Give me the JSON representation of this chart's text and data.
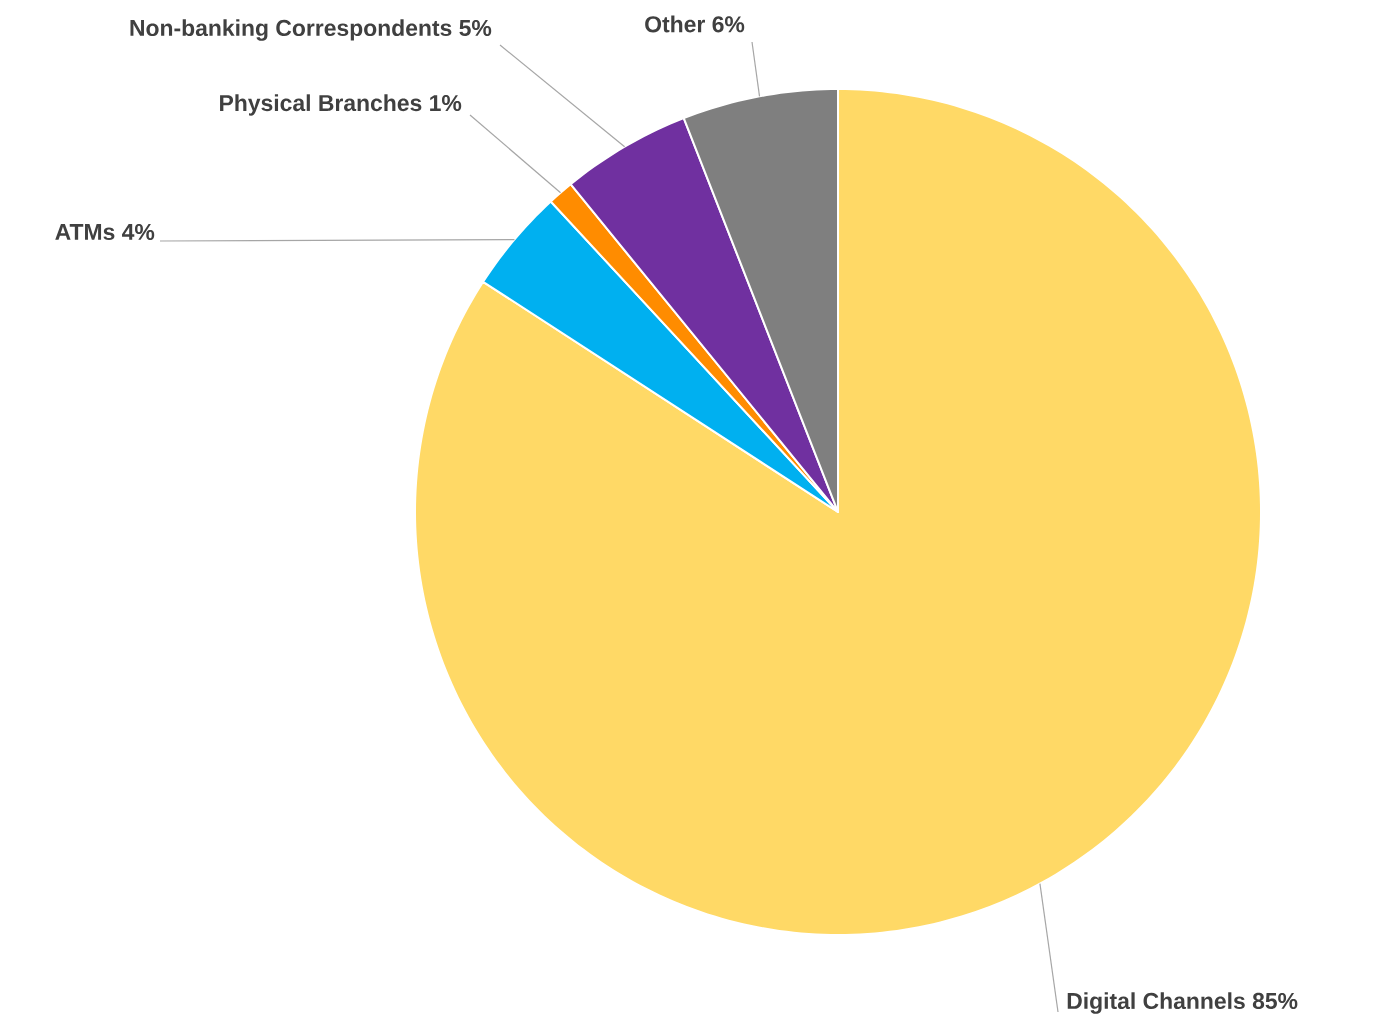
{
  "chart_data": {
    "type": "pie",
    "categories": [
      "Digital Channels",
      "ATMs",
      "Physical Branches",
      "Non-banking Correspondents",
      "Other"
    ],
    "values": [
      85,
      4,
      1,
      5,
      6
    ],
    "colors": [
      "#ffd966",
      "#00b0f0",
      "#ff8c00",
      "#7030a0",
      "#7f7f7f"
    ],
    "value_labels": [
      "85%",
      "4%",
      "1%",
      "5%",
      "6%"
    ]
  }
}
